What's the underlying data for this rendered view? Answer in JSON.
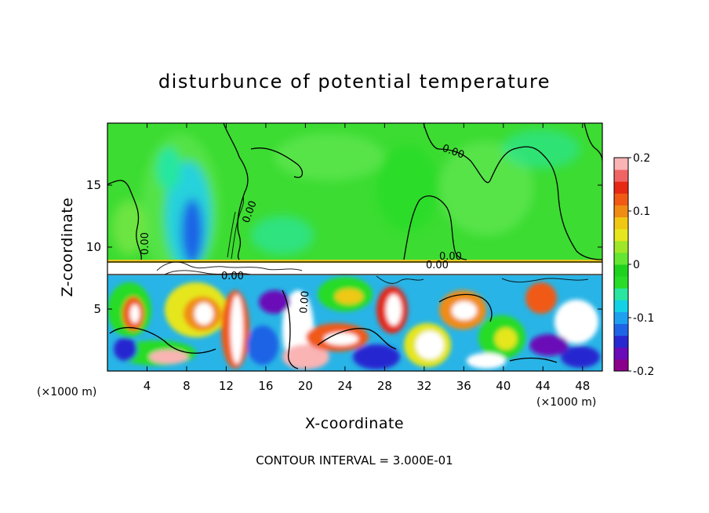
{
  "chart_data": {
    "type": "heatmap",
    "title": "disturbunce of potential temperature",
    "xlabel": "X-coordinate",
    "ylabel": "Z-coordinate",
    "x_unit": "(×1000 m)",
    "z_unit": "(×1000 m)",
    "xlim": [
      0,
      50
    ],
    "ylim": [
      0,
      20
    ],
    "x_ticks": [
      4,
      8,
      12,
      16,
      20,
      24,
      28,
      32,
      36,
      40,
      44,
      48
    ],
    "y_ticks": [
      5,
      10,
      15
    ],
    "colorbar": {
      "range": [
        -0.2,
        0.2
      ],
      "tick_labels": [
        "0.2",
        "0.1",
        "0",
        "-0.1",
        "-0.2"
      ],
      "tick_values": [
        0.2,
        0.1,
        0,
        -0.1,
        -0.2
      ],
      "colors": [
        "#8b008b",
        "#6a0ab8",
        "#2828d0",
        "#1e64e6",
        "#1ea0f0",
        "#14d2e6",
        "#28e6a0",
        "#28dc28",
        "#1ed21e",
        "#64e632",
        "#a0e628",
        "#e6e61e",
        "#f0c814",
        "#f08c14",
        "#f05a14",
        "#e62814",
        "#f06464",
        "#fab4b4"
      ]
    },
    "contour_labels": [
      "0.00",
      "0.00",
      "0.00",
      "0.00",
      "0.00",
      "0.00",
      "0.00"
    ],
    "contour_interval": "CONTOUR INTERVAL = 3.000E-01",
    "grid": false,
    "legend": "colorbar-right"
  },
  "colors": {
    "background": "#ffffff",
    "upper_field": "#3cdc32",
    "upper_light": "#78e646",
    "cyan": "#28d2dc",
    "blue": "#1e64e6",
    "white_band": "#ffffff",
    "axis": "#000000"
  }
}
